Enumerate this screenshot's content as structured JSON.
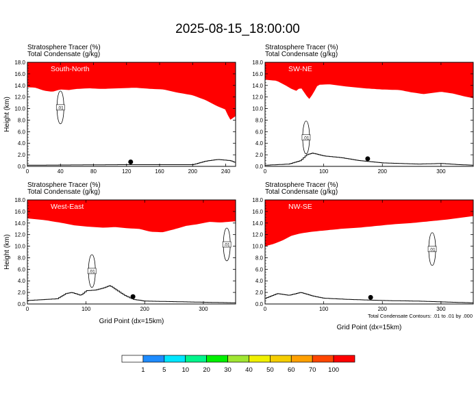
{
  "title": "2025-08-15_18:00:00",
  "footnote": "Total Condensate Contours: .01 to .01 by .000",
  "colorbar": {
    "levels": [
      "1",
      "5",
      "10",
      "20",
      "30",
      "40",
      "50",
      "60",
      "70",
      "100"
    ],
    "colors": [
      "#ffffff",
      "#1e8cff",
      "#00e6ff",
      "#00f58c",
      "#00f000",
      "#a0e632",
      "#f0f000",
      "#f5cd00",
      "#ffa000",
      "#ff4600",
      "#ff0000"
    ]
  },
  "chart_data": [
    {
      "type": "area",
      "panel_label": "South-North",
      "header_lines": [
        "Stratosphere Tracer   (%)",
        "Total Condensate   (g/kg)"
      ],
      "ylabel": "Height (km)",
      "xlabel": "",
      "xlim": [
        0,
        252
      ],
      "ylim": [
        0,
        18
      ],
      "xticks": [
        0,
        40,
        80,
        120,
        160,
        200,
        240
      ],
      "yticks": [
        0,
        2,
        4,
        6,
        8,
        10,
        12,
        14,
        16,
        18
      ],
      "tracer_base_km": [
        [
          0,
          13.7
        ],
        [
          10,
          13.6
        ],
        [
          20,
          13.1
        ],
        [
          30,
          12.9
        ],
        [
          40,
          13.3
        ],
        [
          50,
          13.2
        ],
        [
          60,
          13.4
        ],
        [
          75,
          13.5
        ],
        [
          90,
          13.4
        ],
        [
          110,
          13.5
        ],
        [
          130,
          13.6
        ],
        [
          150,
          13.4
        ],
        [
          165,
          13.3
        ],
        [
          180,
          12.8
        ],
        [
          200,
          12.3
        ],
        [
          215,
          11.5
        ],
        [
          230,
          10.4
        ],
        [
          240,
          9.8
        ],
        [
          245,
          8.0
        ],
        [
          252,
          8.7
        ]
      ],
      "terrain_km": [
        [
          0,
          0.2
        ],
        [
          60,
          0.25
        ],
        [
          120,
          0.3
        ],
        [
          200,
          0.3
        ],
        [
          215,
          0.9
        ],
        [
          230,
          1.2
        ],
        [
          245,
          1.0
        ],
        [
          252,
          0.6
        ]
      ],
      "contour_label": ".01",
      "contour_label_pos": [
        40,
        10.2
      ],
      "location_marker_x": 125
    },
    {
      "type": "area",
      "panel_label": "SW-NE",
      "header_lines": [
        "Stratosphere Tracer   (%)",
        "Total Condensate   (g/kg)"
      ],
      "ylabel": "",
      "xlabel": "",
      "xlim": [
        0,
        355
      ],
      "ylim": [
        0,
        18
      ],
      "xticks": [
        0,
        100,
        200,
        300
      ],
      "yticks": [
        0,
        2,
        4,
        6,
        8,
        10,
        12,
        14,
        16,
        18
      ],
      "tracer_base_km": [
        [
          0,
          15.0
        ],
        [
          20,
          14.8
        ],
        [
          35,
          14.0
        ],
        [
          45,
          13.4
        ],
        [
          55,
          13.0
        ],
        [
          60,
          13.8
        ],
        [
          70,
          12.3
        ],
        [
          75,
          11.6
        ],
        [
          82,
          12.6
        ],
        [
          90,
          14.1
        ],
        [
          110,
          14.2
        ],
        [
          140,
          13.8
        ],
        [
          170,
          13.5
        ],
        [
          200,
          13.3
        ],
        [
          230,
          13.2
        ],
        [
          250,
          12.8
        ],
        [
          270,
          12.5
        ],
        [
          300,
          12.9
        ],
        [
          320,
          12.6
        ],
        [
          340,
          12.1
        ],
        [
          355,
          11.8
        ]
      ],
      "terrain_km": [
        [
          0,
          0.2
        ],
        [
          40,
          0.4
        ],
        [
          60,
          1.0
        ],
        [
          70,
          2.0
        ],
        [
          80,
          2.3
        ],
        [
          100,
          1.8
        ],
        [
          130,
          1.5
        ],
        [
          160,
          1.0
        ],
        [
          200,
          0.6
        ],
        [
          260,
          0.4
        ],
        [
          300,
          0.5
        ],
        [
          330,
          0.3
        ],
        [
          355,
          0.2
        ]
      ],
      "contour_label": ".01",
      "contour_label_pos": [
        70,
        5.0
      ],
      "location_marker_x": 175
    },
    {
      "type": "area",
      "panel_label": "West-East",
      "header_lines": [
        "Stratosphere Tracer   (%)",
        "Total Condensate   (g/kg)"
      ],
      "ylabel": "Height (km)",
      "xlabel": "Grid Point (dx=15km)",
      "xlim": [
        0,
        355
      ],
      "ylim": [
        0,
        18
      ],
      "xticks": [
        0,
        100,
        200,
        300
      ],
      "yticks": [
        0,
        2,
        4,
        6,
        8,
        10,
        12,
        14,
        16,
        18
      ],
      "tracer_base_km": [
        [
          0,
          14.8
        ],
        [
          30,
          14.5
        ],
        [
          60,
          14.0
        ],
        [
          80,
          13.6
        ],
        [
          100,
          13.4
        ],
        [
          130,
          13.2
        ],
        [
          150,
          13.3
        ],
        [
          170,
          13.1
        ],
        [
          190,
          13.0
        ],
        [
          210,
          12.5
        ],
        [
          230,
          12.4
        ],
        [
          250,
          12.9
        ],
        [
          270,
          13.5
        ],
        [
          290,
          13.8
        ],
        [
          310,
          14.2
        ],
        [
          330,
          14.1
        ],
        [
          355,
          14.3
        ]
      ],
      "terrain_km": [
        [
          0,
          0.6
        ],
        [
          50,
          0.9
        ],
        [
          65,
          1.8
        ],
        [
          75,
          2.0
        ],
        [
          90,
          1.5
        ],
        [
          100,
          2.3
        ],
        [
          115,
          2.4
        ],
        [
          130,
          2.8
        ],
        [
          140,
          3.2
        ],
        [
          150,
          2.5
        ],
        [
          165,
          1.5
        ],
        [
          180,
          0.8
        ],
        [
          200,
          0.5
        ],
        [
          250,
          0.4
        ],
        [
          300,
          0.3
        ],
        [
          355,
          0.2
        ]
      ],
      "contour_label": ".01",
      "contour_label_pos": [
        110,
        5.7
      ],
      "contour_label_2": ".01",
      "contour_label_2_pos": [
        340,
        10.3
      ],
      "location_marker_x": 180
    },
    {
      "type": "area",
      "panel_label": "NW-SE",
      "header_lines": [
        "Stratosphere Tracer   (%)",
        "Total Condensate   (g/kg)"
      ],
      "ylabel": "",
      "xlabel": "Grid Point (dx=15km)",
      "xlim": [
        0,
        355
      ],
      "ylim": [
        0,
        18
      ],
      "xticks": [
        0,
        100,
        200,
        300
      ],
      "yticks": [
        0,
        2,
        4,
        6,
        8,
        10,
        12,
        14,
        16,
        18
      ],
      "tracer_base_km": [
        [
          0,
          10.0
        ],
        [
          15,
          10.4
        ],
        [
          30,
          11.0
        ],
        [
          45,
          11.8
        ],
        [
          60,
          12.2
        ],
        [
          80,
          12.5
        ],
        [
          100,
          12.7
        ],
        [
          130,
          13.0
        ],
        [
          160,
          13.2
        ],
        [
          190,
          13.5
        ],
        [
          220,
          13.8
        ],
        [
          250,
          14.0
        ],
        [
          280,
          14.3
        ],
        [
          310,
          14.6
        ],
        [
          340,
          15.0
        ],
        [
          355,
          15.2
        ]
      ],
      "terrain_km": [
        [
          0,
          1.0
        ],
        [
          20,
          1.8
        ],
        [
          40,
          1.5
        ],
        [
          60,
          2.0
        ],
        [
          80,
          1.4
        ],
        [
          100,
          1.0
        ],
        [
          140,
          0.8
        ],
        [
          200,
          0.6
        ],
        [
          260,
          0.5
        ],
        [
          320,
          0.3
        ],
        [
          355,
          0.2
        ]
      ],
      "contour_label": ".01",
      "contour_label_pos": [
        285,
        9.5
      ],
      "location_marker_x": 180
    }
  ]
}
